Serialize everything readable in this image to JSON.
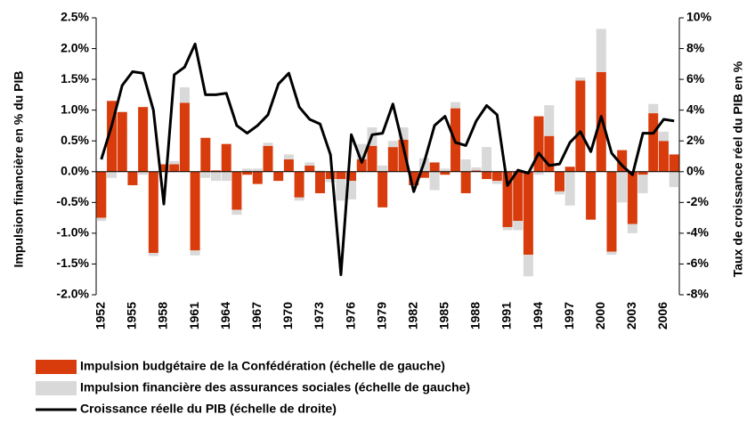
{
  "chart_data": {
    "type": "bar",
    "stacked": true,
    "ylabel": "Impulsion financière en % du PIB",
    "y2label": "Taux de croissance  réel du PIB en %",
    "categories": [
      "1952",
      null,
      null,
      "1955",
      null,
      null,
      "1958",
      null,
      null,
      "1961",
      null,
      null,
      "1964",
      null,
      null,
      "1967",
      null,
      null,
      "1970",
      null,
      null,
      "1973",
      null,
      null,
      "1976",
      null,
      null,
      "1979",
      null,
      null,
      "1982",
      null,
      null,
      "1985",
      null,
      null,
      "1988",
      null,
      null,
      "1991",
      null,
      null,
      "1994",
      null,
      null,
      "1997",
      null,
      null,
      "2000",
      null,
      null,
      "2003",
      null,
      null,
      "2006",
      null
    ],
    "series": [
      {
        "name": "Impulsion budgétaire  de la Confédération  (échelle de gauche)",
        "color": "#d83c0c",
        "values": [
          -0.75,
          1.15,
          0.97,
          -0.22,
          1.05,
          -1.32,
          0.12,
          0.12,
          1.12,
          -1.28,
          0.55,
          0.02,
          0.45,
          -0.62,
          -0.05,
          -0.2,
          0.42,
          -0.15,
          0.2,
          -0.42,
          0.1,
          -0.35,
          -0.12,
          -0.12,
          -0.15,
          0.2,
          0.42,
          -0.58,
          0.4,
          0.52,
          -0.22,
          -0.1,
          0.15,
          -0.05,
          1.03,
          -0.35,
          0.02,
          -0.12,
          -0.15,
          -0.9,
          -0.8,
          -1.35,
          0.9,
          0.58,
          -0.32,
          0.08,
          1.48,
          -0.78,
          1.62,
          -1.3,
          0.35,
          -0.85,
          -0.05,
          0.95,
          0.5,
          0.28
        ]
      },
      {
        "name": "Impulsion financière  des assurances sociales (échelle de gauche)",
        "color": "#d9d9d9",
        "values": [
          -0.05,
          -0.1,
          0.0,
          0.0,
          -0.05,
          -0.05,
          0.0,
          0.05,
          0.25,
          -0.08,
          -0.1,
          -0.15,
          -0.15,
          -0.08,
          0.05,
          0.05,
          0.05,
          0.0,
          0.08,
          -0.05,
          0.05,
          0.02,
          -0.05,
          -0.35,
          -0.3,
          0.25,
          0.3,
          0.1,
          0.1,
          0.2,
          0.0,
          0.22,
          -0.3,
          0.05,
          0.1,
          0.2,
          0.05,
          0.4,
          -0.05,
          -0.05,
          -0.15,
          -0.35,
          -0.05,
          0.5,
          -0.05,
          -0.55,
          0.05,
          0.0,
          0.7,
          -0.05,
          -0.5,
          -0.15,
          -0.3,
          0.15,
          0.15,
          -0.25
        ]
      },
      {
        "name": "Croissance réelle du PIB (échelle de droite)",
        "color": "#000000",
        "type": "line",
        "axis": "y2",
        "values": [
          0.8,
          3.0,
          5.6,
          6.5,
          6.4,
          4.0,
          -2.1,
          6.3,
          6.8,
          8.3,
          5.0,
          5.0,
          5.1,
          3.0,
          2.5,
          3.0,
          3.7,
          5.7,
          6.4,
          4.2,
          3.4,
          3.1,
          1.1,
          -6.7,
          2.4,
          0.6,
          2.4,
          2.5,
          4.4,
          1.6,
          -1.3,
          0.6,
          3.0,
          3.6,
          1.9,
          1.7,
          3.3,
          4.3,
          3.7,
          -0.9,
          0.1,
          -0.1,
          1.2,
          0.4,
          0.5,
          1.9,
          2.6,
          1.3,
          3.6,
          1.2,
          0.4,
          -0.2,
          2.5,
          2.5,
          3.4,
          3.3
        ]
      }
    ],
    "ylim": [
      -2.0,
      2.5
    ],
    "yticks": [
      {
        "value": -2.0,
        "label": "-2.0%"
      },
      {
        "value": -1.5,
        "label": "-1.5%"
      },
      {
        "value": -1.0,
        "label": "-1.0%"
      },
      {
        "value": -0.5,
        "label": "-0.5%"
      },
      {
        "value": 0.0,
        "label": "0.0%"
      },
      {
        "value": 0.5,
        "label": "0.5%"
      },
      {
        "value": 1.0,
        "label": "1.0%"
      },
      {
        "value": 1.5,
        "label": "1.5%"
      },
      {
        "value": 2.0,
        "label": "2.0%"
      },
      {
        "value": 2.5,
        "label": "2.5%"
      }
    ],
    "y2lim": [
      -8,
      10
    ],
    "y2ticks": [
      {
        "value": -8,
        "label": "-8%"
      },
      {
        "value": -6,
        "label": "-6%"
      },
      {
        "value": -4,
        "label": "-4%"
      },
      {
        "value": -2,
        "label": "-2%"
      },
      {
        "value": 0,
        "label": "0%"
      },
      {
        "value": 2,
        "label": "2%"
      },
      {
        "value": 4,
        "label": "4%"
      },
      {
        "value": 6,
        "label": "6%"
      },
      {
        "value": 8,
        "label": "8%"
      },
      {
        "value": 10,
        "label": "10%"
      }
    ]
  }
}
